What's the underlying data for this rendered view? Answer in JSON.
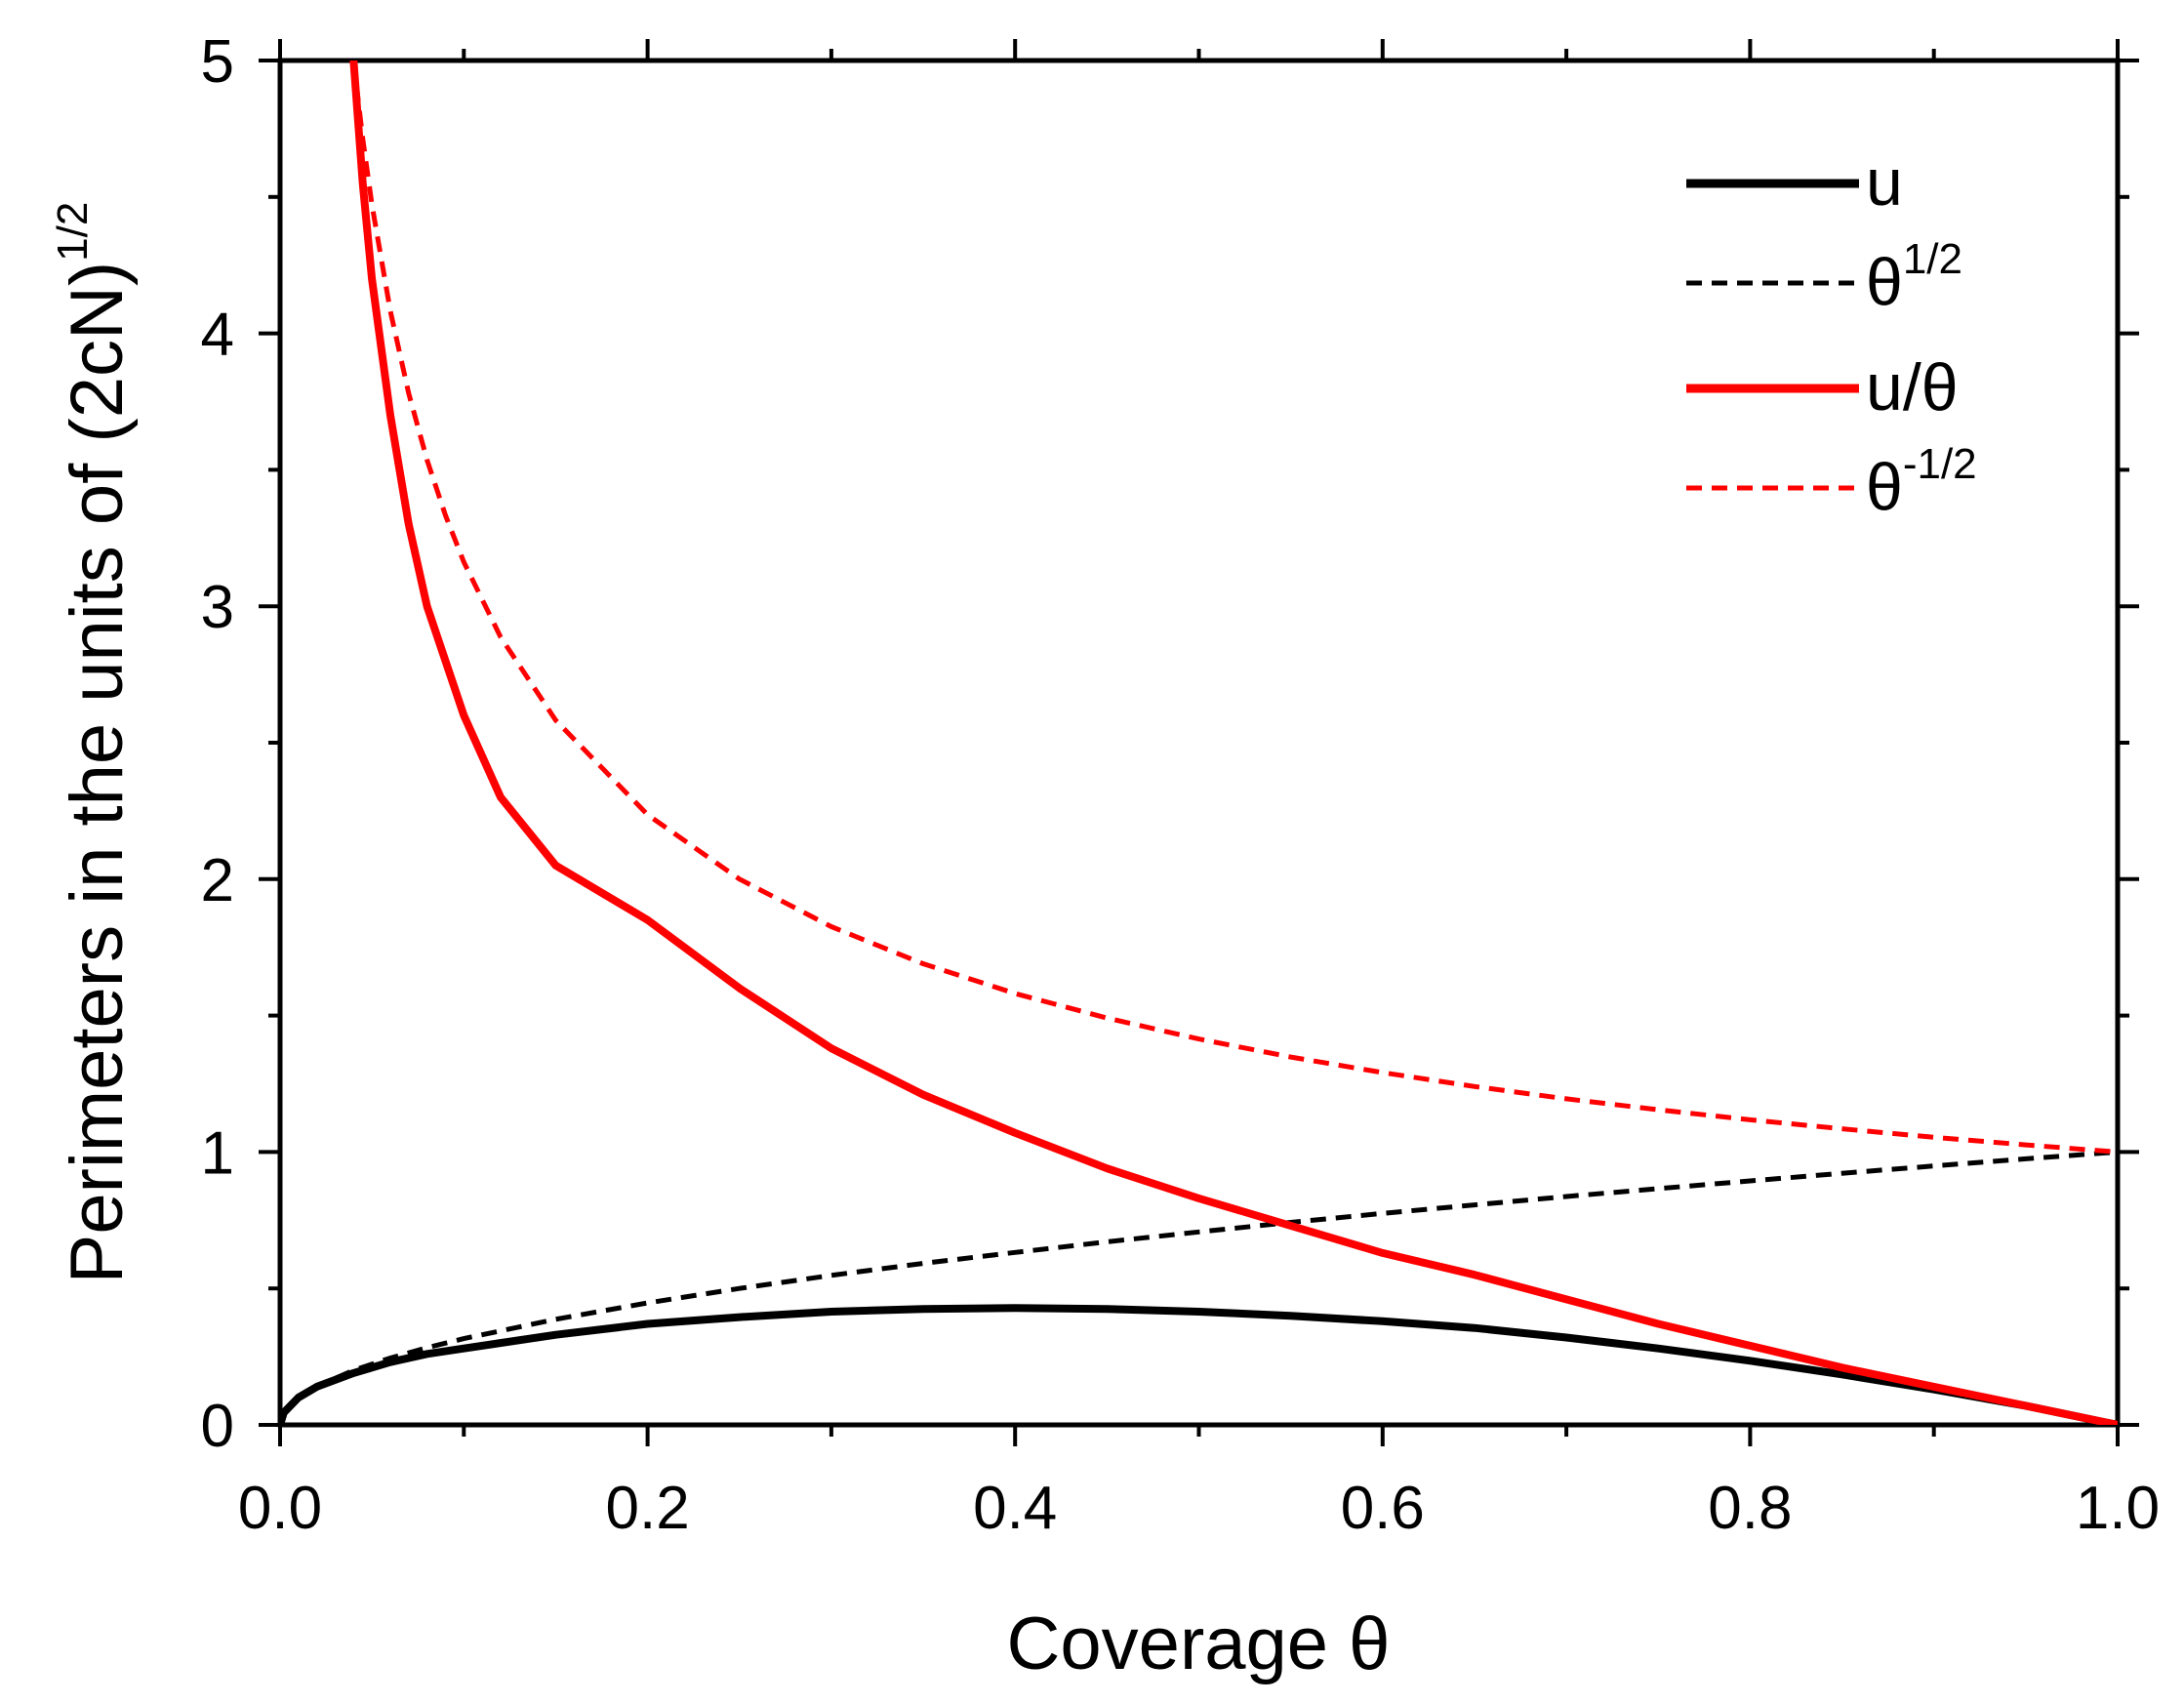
{
  "chart_data": {
    "type": "line",
    "xlabel": "Coverage θ",
    "ylabel": {
      "base": "Perimeters in the units of (2cN)",
      "sup": "1/2"
    },
    "xlim": [
      0,
      1
    ],
    "ylim": [
      0,
      5
    ],
    "xticks": [
      "0.0",
      "0.2",
      "0.4",
      "0.6",
      "0.8",
      "1.0"
    ],
    "yticks": [
      "0",
      "1",
      "2",
      "3",
      "4",
      "5"
    ],
    "x_tick_values": [
      0,
      0.2,
      0.4,
      0.6,
      0.8,
      1.0
    ],
    "y_tick_values": [
      0,
      1,
      2,
      3,
      4,
      5
    ],
    "x_minor_step": 0.1,
    "y_minor_step": 0.5,
    "legend_position": "top-right",
    "series": [
      {
        "name": "u",
        "legend_base": "u",
        "legend_sup": "",
        "color": "#000000",
        "style": "solid",
        "x": [
          0.0,
          0.002,
          0.01,
          0.02,
          0.04,
          0.06,
          0.08,
          0.1,
          0.15,
          0.2,
          0.25,
          0.3,
          0.35,
          0.4,
          0.45,
          0.5,
          0.55,
          0.6,
          0.65,
          0.7,
          0.75,
          0.8,
          0.85,
          0.9,
          0.95,
          1.0
        ],
        "y": [
          0.0,
          0.045,
          0.1,
          0.14,
          0.19,
          0.23,
          0.26,
          0.28,
          0.33,
          0.37,
          0.395,
          0.415,
          0.425,
          0.428,
          0.425,
          0.415,
          0.4,
          0.38,
          0.355,
          0.32,
          0.28,
          0.235,
          0.185,
          0.13,
          0.07,
          0.0
        ]
      },
      {
        "name": "θ^1/2",
        "legend_base": "θ",
        "legend_sup": "1/2",
        "color": "#000000",
        "style": "dashed",
        "x": [
          0.0,
          0.002,
          0.005,
          0.01,
          0.02,
          0.04,
          0.06,
          0.08,
          0.1,
          0.15,
          0.2,
          0.25,
          0.3,
          0.35,
          0.4,
          0.45,
          0.5,
          0.55,
          0.6,
          0.65,
          0.7,
          0.75,
          0.8,
          0.85,
          0.9,
          0.95,
          1.0
        ],
        "y": [
          0.0,
          0.045,
          0.071,
          0.1,
          0.141,
          0.2,
          0.245,
          0.283,
          0.316,
          0.387,
          0.447,
          0.5,
          0.548,
          0.592,
          0.632,
          0.671,
          0.707,
          0.742,
          0.775,
          0.806,
          0.837,
          0.866,
          0.894,
          0.922,
          0.949,
          0.975,
          1.0
        ]
      },
      {
        "name": "u/θ",
        "legend_base": "u/θ",
        "legend_sup": "",
        "color": "#ff0000",
        "style": "solid",
        "x": [
          0.04,
          0.045,
          0.05,
          0.06,
          0.07,
          0.08,
          0.1,
          0.12,
          0.15,
          0.2,
          0.25,
          0.3,
          0.35,
          0.4,
          0.45,
          0.5,
          0.55,
          0.6,
          0.65,
          0.7,
          0.75,
          0.8,
          0.85,
          0.9,
          0.95,
          1.0
        ],
        "y": [
          5.0,
          4.55,
          4.2,
          3.7,
          3.3,
          3.0,
          2.6,
          2.3,
          2.05,
          1.85,
          1.6,
          1.38,
          1.21,
          1.07,
          0.94,
          0.83,
          0.73,
          0.63,
          0.55,
          0.46,
          0.37,
          0.29,
          0.21,
          0.14,
          0.07,
          0.0
        ]
      },
      {
        "name": "θ^-1/2",
        "legend_base": "θ",
        "legend_sup": "-1/2",
        "color": "#ff0000",
        "style": "dashed",
        "x": [
          0.04,
          0.045,
          0.05,
          0.06,
          0.07,
          0.08,
          0.09,
          0.1,
          0.12,
          0.15,
          0.2,
          0.25,
          0.3,
          0.35,
          0.4,
          0.45,
          0.5,
          0.55,
          0.6,
          0.65,
          0.7,
          0.75,
          0.8,
          0.85,
          0.9,
          0.95,
          1.0
        ],
        "y": [
          5.0,
          4.714,
          4.472,
          4.082,
          3.78,
          3.536,
          3.333,
          3.162,
          2.887,
          2.582,
          2.236,
          2.0,
          1.826,
          1.69,
          1.581,
          1.491,
          1.414,
          1.348,
          1.291,
          1.24,
          1.195,
          1.155,
          1.118,
          1.085,
          1.054,
          1.026,
          1.0
        ]
      }
    ]
  }
}
